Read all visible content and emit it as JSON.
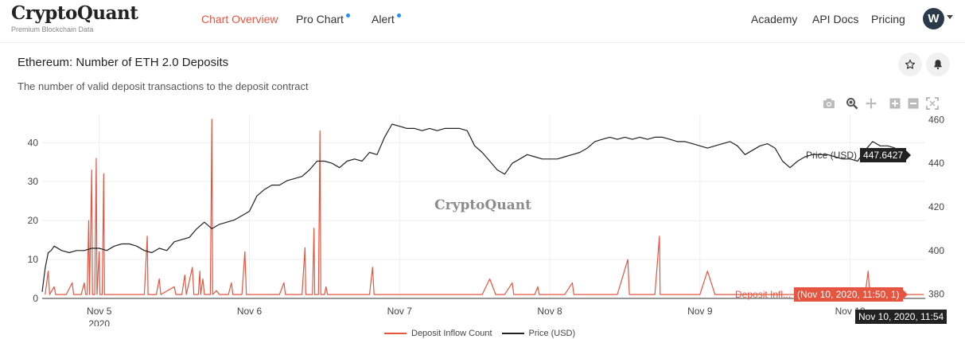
{
  "brand": {
    "name": "CryptoQuant",
    "tagline": "Premium Blockchain Data"
  },
  "nav": {
    "chart_overview": "Chart Overview",
    "pro_chart": "Pro Chart",
    "alert": "Alert",
    "academy": "Academy",
    "api_docs": "API Docs",
    "pricing": "Pricing",
    "avatar_initial": "W"
  },
  "header": {
    "title": "Ethereum: Number of ETH 2.0 Deposits",
    "subtitle": "The number of valid deposit transactions to the deposit contract"
  },
  "icons": {
    "star": "star-icon",
    "bell": "bell-icon",
    "camera": "camera-icon",
    "zoom": "zoom-icon",
    "pan": "pan-icon",
    "zoom_in": "zoom-in-icon",
    "zoom_out": "zoom-out-icon",
    "autoscale": "autoscale-icon"
  },
  "colors": {
    "accent": "#e6553f",
    "price_line": "#222222",
    "deposit_line": "#e6553f",
    "nav_dot": "#1e90ff"
  },
  "watermark": "CryptoQuant",
  "hover": {
    "price_name": "Price (USD)",
    "price_value": "447.6427",
    "deposit_name": "Deposit Infl...",
    "deposit_value": "(Nov 10, 2020, 11:50, 1)",
    "x_value": "Nov 10, 2020, 11:54"
  },
  "chart_data": {
    "type": "line",
    "x_ticks": [
      "Nov 5",
      "Nov 6",
      "Nov 7",
      "Nov 8",
      "Nov 9",
      "Nov 10"
    ],
    "x_year_label": "2020",
    "y_left_ticks": [
      "0",
      "10",
      "20",
      "30",
      "40"
    ],
    "y_right_ticks": [
      "380",
      "400",
      "420",
      "440",
      "460"
    ],
    "ylim_left": [
      0,
      47
    ],
    "ylim_right": [
      378,
      462
    ],
    "xlim_days": [
      4.62,
      10.5
    ],
    "grid": true,
    "legend": "bottom-center",
    "series": [
      {
        "name": "Deposit Inflow Count",
        "axis": "left",
        "color": "#e6553f",
        "points": [
          [
            4.64,
            1
          ],
          [
            4.66,
            7
          ],
          [
            4.67,
            1
          ],
          [
            4.7,
            3
          ],
          [
            4.71,
            1
          ],
          [
            4.78,
            1
          ],
          [
            4.82,
            4
          ],
          [
            4.83,
            1
          ],
          [
            4.88,
            1
          ],
          [
            4.9,
            4
          ],
          [
            4.91,
            1
          ],
          [
            4.92,
            1
          ],
          [
            4.93,
            20
          ],
          [
            4.935,
            1
          ],
          [
            4.95,
            33
          ],
          [
            4.955,
            1
          ],
          [
            4.97,
            1
          ],
          [
            4.98,
            36
          ],
          [
            4.985,
            1
          ],
          [
            5.0,
            12
          ],
          [
            5.005,
            1
          ],
          [
            5.02,
            1
          ],
          [
            5.03,
            32
          ],
          [
            5.035,
            1
          ],
          [
            5.06,
            1
          ],
          [
            5.1,
            1
          ],
          [
            5.2,
            1
          ],
          [
            5.3,
            1
          ],
          [
            5.32,
            16
          ],
          [
            5.325,
            1
          ],
          [
            5.38,
            1
          ],
          [
            5.4,
            5
          ],
          [
            5.41,
            1
          ],
          [
            5.5,
            3
          ],
          [
            5.51,
            1
          ],
          [
            5.55,
            1
          ],
          [
            5.57,
            6
          ],
          [
            5.58,
            1
          ],
          [
            5.62,
            8
          ],
          [
            5.63,
            1
          ],
          [
            5.66,
            1
          ],
          [
            5.67,
            7
          ],
          [
            5.675,
            1
          ],
          [
            5.69,
            5
          ],
          [
            5.7,
            1
          ],
          [
            5.74,
            1
          ],
          [
            5.75,
            46
          ],
          [
            5.755,
            1
          ],
          [
            5.78,
            2
          ],
          [
            5.8,
            1
          ],
          [
            5.86,
            1
          ],
          [
            5.88,
            4
          ],
          [
            5.89,
            1
          ],
          [
            5.95,
            1
          ],
          [
            5.97,
            12
          ],
          [
            5.98,
            1
          ],
          [
            6.1,
            1
          ],
          [
            6.2,
            1
          ],
          [
            6.23,
            4
          ],
          [
            6.24,
            1
          ],
          [
            6.35,
            1
          ],
          [
            6.37,
            13
          ],
          [
            6.375,
            1
          ],
          [
            6.42,
            1
          ],
          [
            6.43,
            18
          ],
          [
            6.435,
            1
          ],
          [
            6.46,
            1
          ],
          [
            6.47,
            43
          ],
          [
            6.475,
            1
          ],
          [
            6.5,
            1
          ],
          [
            6.51,
            3
          ],
          [
            6.52,
            1
          ],
          [
            6.8,
            1
          ],
          [
            6.82,
            8
          ],
          [
            6.83,
            1
          ],
          [
            7.1,
            1
          ],
          [
            7.4,
            1
          ],
          [
            7.55,
            1
          ],
          [
            7.6,
            5
          ],
          [
            7.64,
            1
          ],
          [
            7.7,
            1
          ],
          [
            7.75,
            4
          ],
          [
            7.76,
            1
          ],
          [
            7.8,
            1
          ],
          [
            7.9,
            1
          ],
          [
            7.92,
            3
          ],
          [
            7.93,
            1
          ],
          [
            8.1,
            1
          ],
          [
            8.15,
            4
          ],
          [
            8.16,
            1
          ],
          [
            8.3,
            1
          ],
          [
            8.45,
            1
          ],
          [
            8.52,
            10
          ],
          [
            8.53,
            1
          ],
          [
            8.7,
            1
          ],
          [
            8.73,
            16
          ],
          [
            8.735,
            1
          ],
          [
            8.85,
            1
          ],
          [
            9.0,
            1
          ],
          [
            9.05,
            7
          ],
          [
            9.1,
            1
          ],
          [
            9.15,
            1
          ],
          [
            9.2,
            1
          ],
          [
            9.4,
            1
          ],
          [
            9.6,
            1
          ],
          [
            9.8,
            1
          ],
          [
            10.0,
            1
          ],
          [
            10.1,
            1
          ],
          [
            10.12,
            7
          ],
          [
            10.13,
            1
          ],
          [
            10.3,
            1
          ],
          [
            10.49,
            1
          ]
        ]
      },
      {
        "name": "Price (USD)",
        "axis": "right",
        "color": "#222222",
        "points": [
          [
            4.62,
            381
          ],
          [
            4.64,
            392
          ],
          [
            4.66,
            399
          ],
          [
            4.68,
            400
          ],
          [
            4.7,
            402
          ],
          [
            4.75,
            400
          ],
          [
            4.8,
            399
          ],
          [
            4.85,
            400
          ],
          [
            4.9,
            400
          ],
          [
            4.95,
            401
          ],
          [
            5.0,
            401
          ],
          [
            5.05,
            400
          ],
          [
            5.1,
            402
          ],
          [
            5.15,
            403
          ],
          [
            5.2,
            403
          ],
          [
            5.25,
            402
          ],
          [
            5.3,
            400
          ],
          [
            5.35,
            399
          ],
          [
            5.4,
            401
          ],
          [
            5.45,
            400
          ],
          [
            5.5,
            404
          ],
          [
            5.55,
            405
          ],
          [
            5.6,
            406
          ],
          [
            5.65,
            410
          ],
          [
            5.7,
            413
          ],
          [
            5.75,
            410
          ],
          [
            5.8,
            412
          ],
          [
            5.85,
            413
          ],
          [
            5.9,
            414
          ],
          [
            5.95,
            416
          ],
          [
            6.0,
            418
          ],
          [
            6.05,
            425
          ],
          [
            6.1,
            428
          ],
          [
            6.15,
            430
          ],
          [
            6.2,
            430
          ],
          [
            6.25,
            432
          ],
          [
            6.3,
            433
          ],
          [
            6.35,
            434
          ],
          [
            6.4,
            437
          ],
          [
            6.45,
            441
          ],
          [
            6.5,
            441
          ],
          [
            6.55,
            440
          ],
          [
            6.6,
            438
          ],
          [
            6.65,
            441
          ],
          [
            6.7,
            442
          ],
          [
            6.75,
            441
          ],
          [
            6.8,
            445
          ],
          [
            6.85,
            444
          ],
          [
            6.9,
            452
          ],
          [
            6.95,
            458
          ],
          [
            7.0,
            457
          ],
          [
            7.05,
            456
          ],
          [
            7.1,
            456
          ],
          [
            7.15,
            455
          ],
          [
            7.2,
            456
          ],
          [
            7.25,
            455
          ],
          [
            7.3,
            456
          ],
          [
            7.35,
            456
          ],
          [
            7.4,
            456
          ],
          [
            7.45,
            455
          ],
          [
            7.5,
            448
          ],
          [
            7.55,
            445
          ],
          [
            7.6,
            441
          ],
          [
            7.65,
            437
          ],
          [
            7.7,
            435
          ],
          [
            7.75,
            440
          ],
          [
            7.8,
            442
          ],
          [
            7.85,
            444
          ],
          [
            7.9,
            443
          ],
          [
            7.95,
            442
          ],
          [
            8.0,
            442
          ],
          [
            8.05,
            442
          ],
          [
            8.1,
            443
          ],
          [
            8.15,
            444
          ],
          [
            8.2,
            445
          ],
          [
            8.25,
            447
          ],
          [
            8.3,
            450
          ],
          [
            8.35,
            451
          ],
          [
            8.4,
            452
          ],
          [
            8.45,
            451
          ],
          [
            8.5,
            452
          ],
          [
            8.55,
            451
          ],
          [
            8.6,
            452
          ],
          [
            8.65,
            451
          ],
          [
            8.7,
            452
          ],
          [
            8.75,
            452
          ],
          [
            8.8,
            451
          ],
          [
            8.85,
            450
          ],
          [
            8.9,
            450
          ],
          [
            8.95,
            449
          ],
          [
            9.0,
            448
          ],
          [
            9.05,
            447
          ],
          [
            9.1,
            448
          ],
          [
            9.15,
            449
          ],
          [
            9.2,
            450
          ],
          [
            9.25,
            448
          ],
          [
            9.3,
            444
          ],
          [
            9.35,
            446
          ],
          [
            9.4,
            448
          ],
          [
            9.45,
            449
          ],
          [
            9.5,
            447
          ],
          [
            9.55,
            441
          ],
          [
            9.6,
            438
          ],
          [
            9.65,
            441
          ],
          [
            9.7,
            443
          ],
          [
            9.75,
            444
          ],
          [
            9.8,
            444
          ],
          [
            9.85,
            444
          ],
          [
            9.9,
            443
          ],
          [
            9.95,
            442
          ],
          [
            10.0,
            442
          ],
          [
            10.05,
            441
          ],
          [
            10.1,
            446
          ],
          [
            10.15,
            450
          ],
          [
            10.2,
            448
          ],
          [
            10.25,
            448
          ],
          [
            10.3,
            447
          ]
        ]
      }
    ]
  }
}
